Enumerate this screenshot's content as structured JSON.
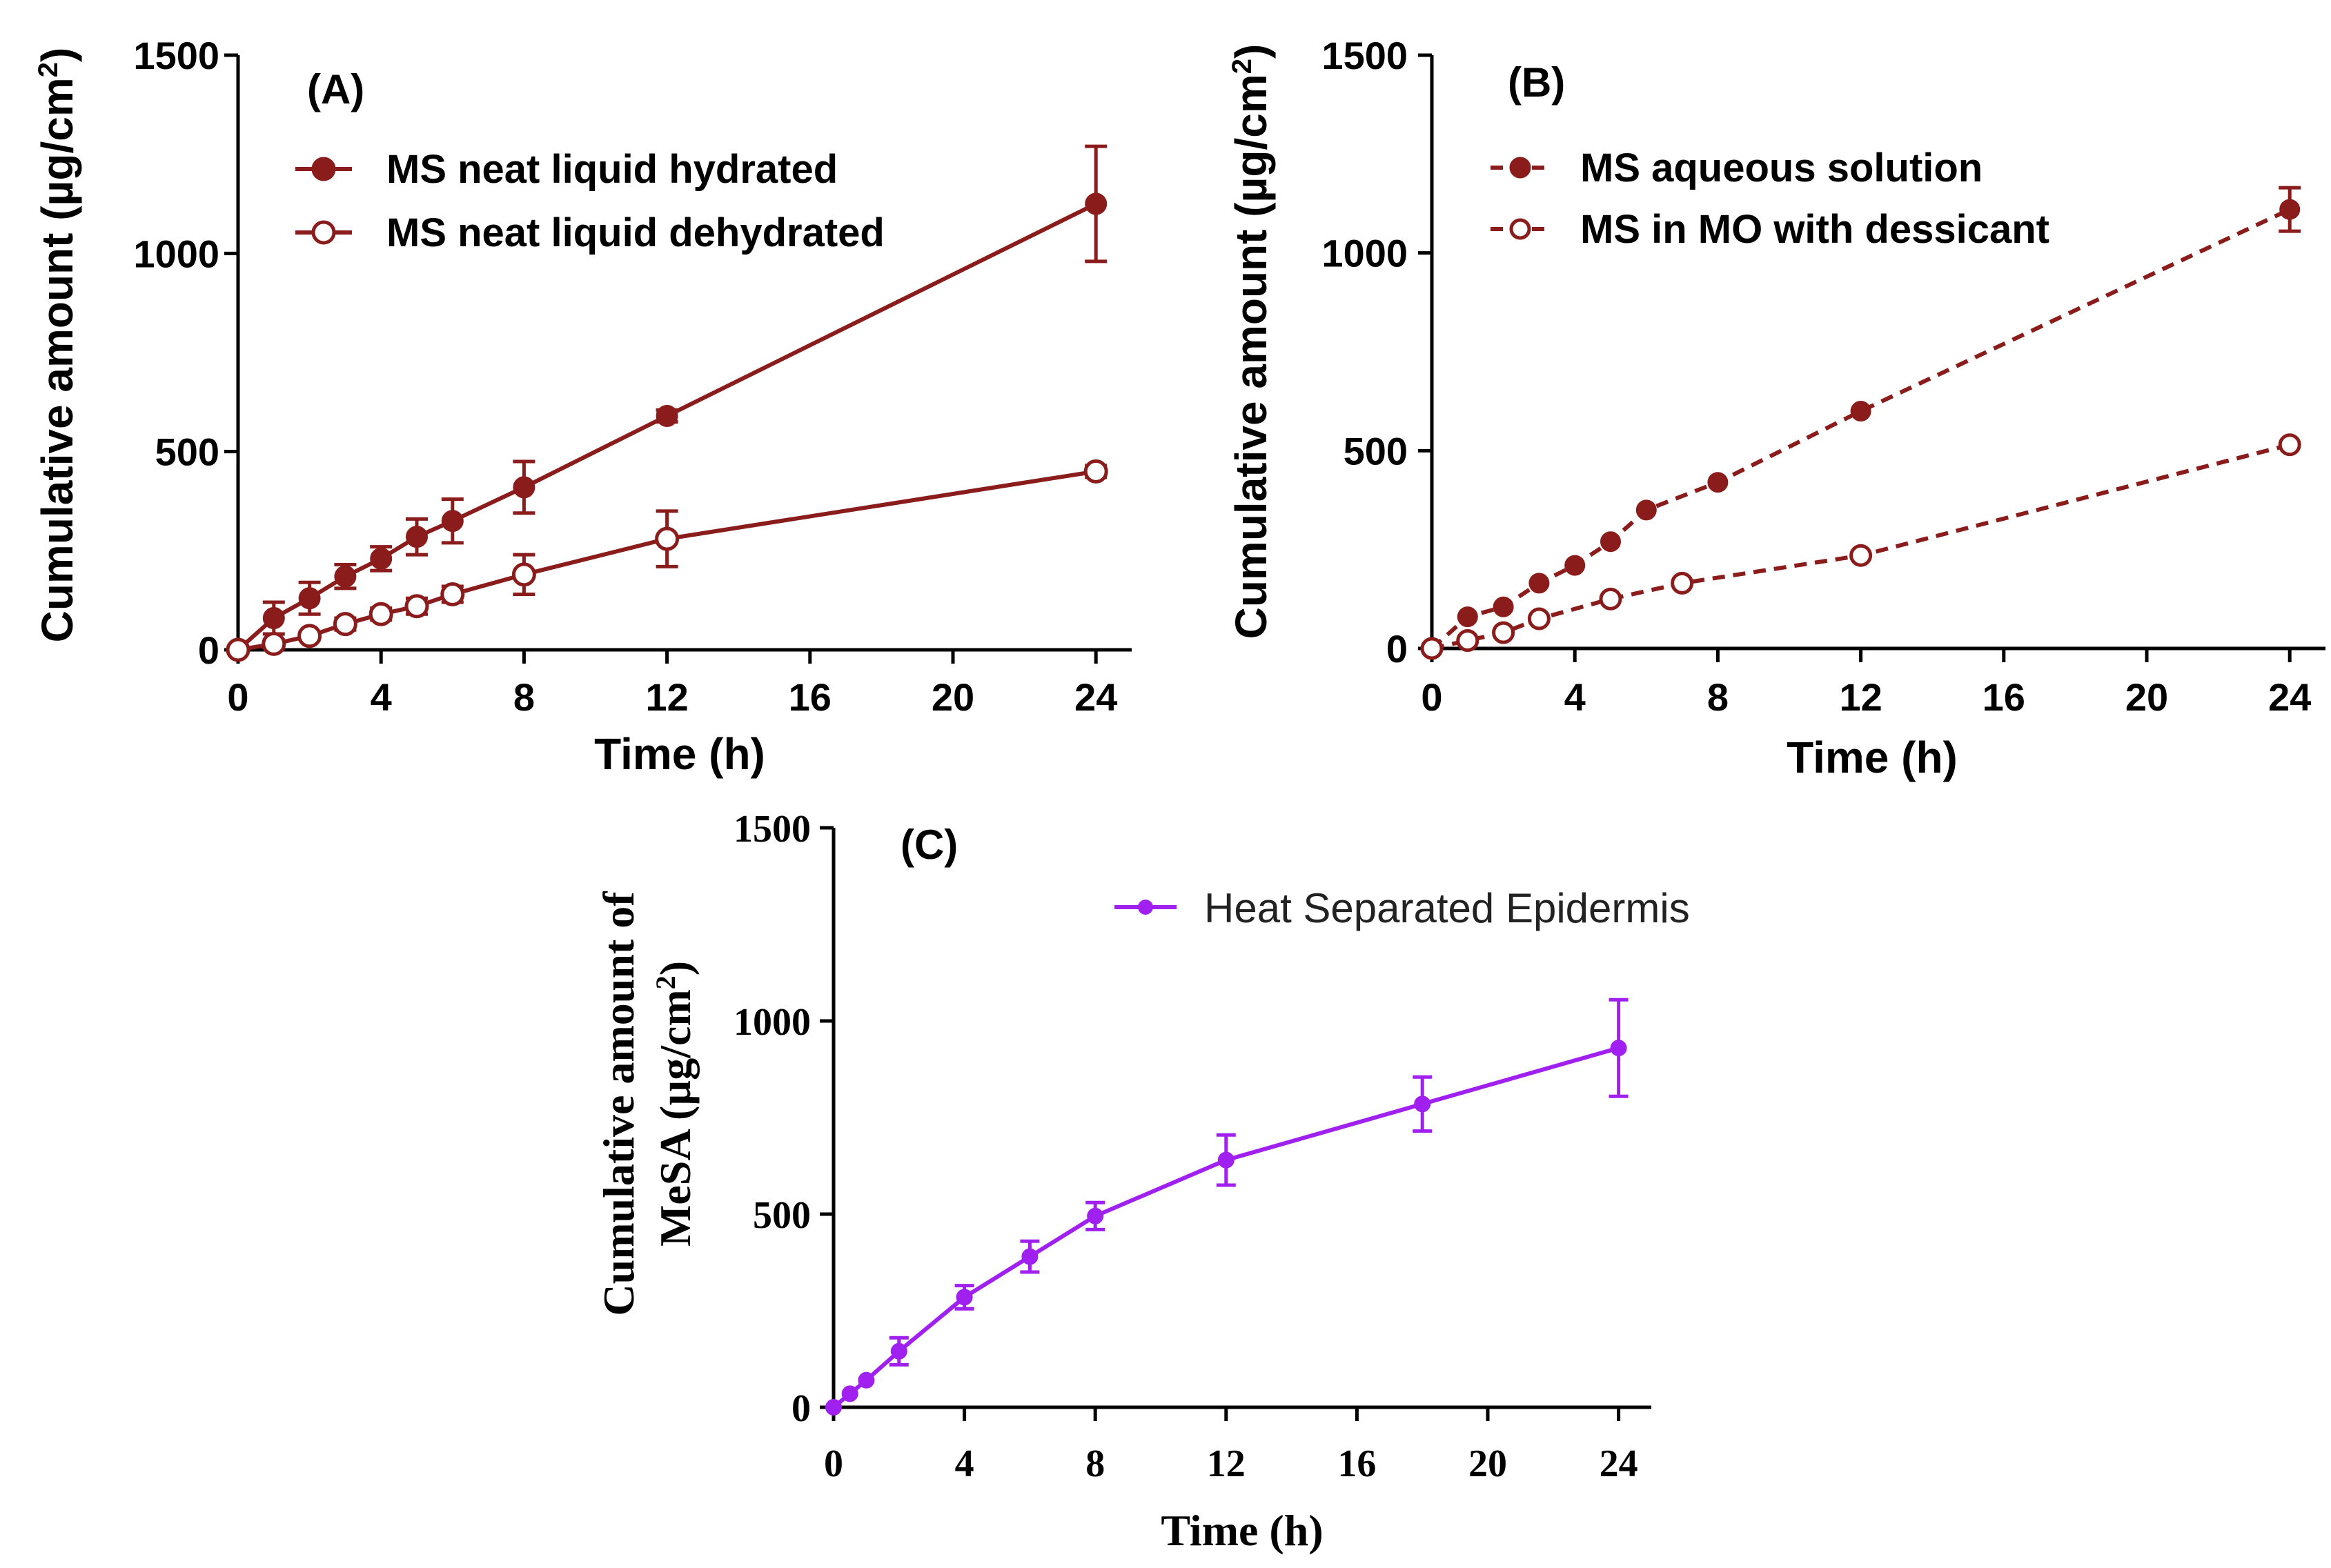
{
  "colors": {
    "dark_red": "#8b1c1c",
    "purple": "#a020f0",
    "axis": "#000000"
  },
  "chart_data": [
    {
      "id": "A",
      "type": "line",
      "panel_label": "(A)",
      "xlabel": "Time (h)",
      "ylabel": "Cumulative amount (µg/cm",
      "ylabel_sup": "2",
      "ylabel_end": ")",
      "xlim": [
        0,
        25
      ],
      "ylim": [
        0,
        1500
      ],
      "xticks": [
        0,
        4,
        8,
        12,
        16,
        20,
        24
      ],
      "yticks": [
        0,
        500,
        1000,
        1500
      ],
      "legend_position": "top-left",
      "series": [
        {
          "name": "MS neat liquid hydrated",
          "marker": "filled-circle",
          "linestyle": "solid",
          "x": [
            0,
            1,
            2,
            3,
            4,
            5,
            6,
            8,
            12,
            24
          ],
          "y": [
            0,
            80,
            130,
            185,
            230,
            285,
            325,
            410,
            590,
            1125
          ],
          "err": [
            0,
            40,
            40,
            30,
            30,
            45,
            55,
            65,
            15,
            145
          ]
        },
        {
          "name": "MS neat liquid dehydrated",
          "marker": "open-circle",
          "linestyle": "solid",
          "x": [
            0,
            1,
            2,
            3,
            4,
            5,
            6,
            8,
            12,
            24
          ],
          "y": [
            0,
            15,
            35,
            65,
            90,
            110,
            140,
            190,
            280,
            450
          ],
          "err": [
            0,
            10,
            10,
            15,
            15,
            20,
            20,
            50,
            70,
            15
          ]
        }
      ]
    },
    {
      "id": "B",
      "type": "line",
      "panel_label": "(B)",
      "xlabel": "Time (h)",
      "ylabel": "Cumulative amount (µg/cm",
      "ylabel_sup": "2",
      "ylabel_end": ")",
      "xlim": [
        0,
        25
      ],
      "ylim": [
        0,
        1500
      ],
      "xticks": [
        0,
        4,
        8,
        12,
        16,
        20,
        24
      ],
      "yticks": [
        0,
        500,
        1000,
        1500
      ],
      "legend_position": "top-left",
      "series": [
        {
          "name": "MS aqueous solution",
          "marker": "filled-circle",
          "linestyle": "dashed",
          "x": [
            0,
            1,
            2,
            3,
            4,
            5,
            6,
            8,
            12,
            24
          ],
          "y": [
            0,
            80,
            105,
            165,
            210,
            270,
            350,
            420,
            600,
            1110
          ],
          "err": [
            0,
            0,
            0,
            0,
            0,
            0,
            0,
            0,
            0,
            55
          ]
        },
        {
          "name": "MS in MO with dessicant",
          "marker": "open-circle",
          "linestyle": "dashed",
          "x": [
            0,
            1,
            2,
            3,
            5,
            7,
            12,
            24
          ],
          "y": [
            0,
            20,
            40,
            75,
            125,
            165,
            235,
            515
          ],
          "err": [
            0,
            0,
            0,
            0,
            0,
            0,
            0,
            0
          ]
        }
      ]
    },
    {
      "id": "C",
      "type": "line",
      "panel_label": "(C)",
      "xlabel": "Time (h)",
      "ylabel_line1": "Cumulative amount of",
      "ylabel_line2": "MeSA (µg/cm",
      "ylabel_sup": "2",
      "ylabel_end": ")",
      "xlim": [
        0,
        25
      ],
      "ylim": [
        0,
        1500
      ],
      "xticks": [
        0,
        4,
        8,
        12,
        16,
        20,
        24
      ],
      "yticks": [
        0,
        500,
        1000,
        1500
      ],
      "legend_position": "top-center",
      "series": [
        {
          "name": "Heat Separated Epidermis",
          "marker": "filled-circle",
          "linestyle": "solid",
          "x": [
            0,
            0.5,
            1,
            2,
            4,
            6,
            8,
            12,
            18,
            24
          ],
          "y": [
            0,
            35,
            70,
            145,
            285,
            390,
            495,
            640,
            785,
            930
          ],
          "err": [
            0,
            0,
            0,
            35,
            30,
            40,
            35,
            65,
            70,
            125
          ]
        }
      ]
    }
  ]
}
